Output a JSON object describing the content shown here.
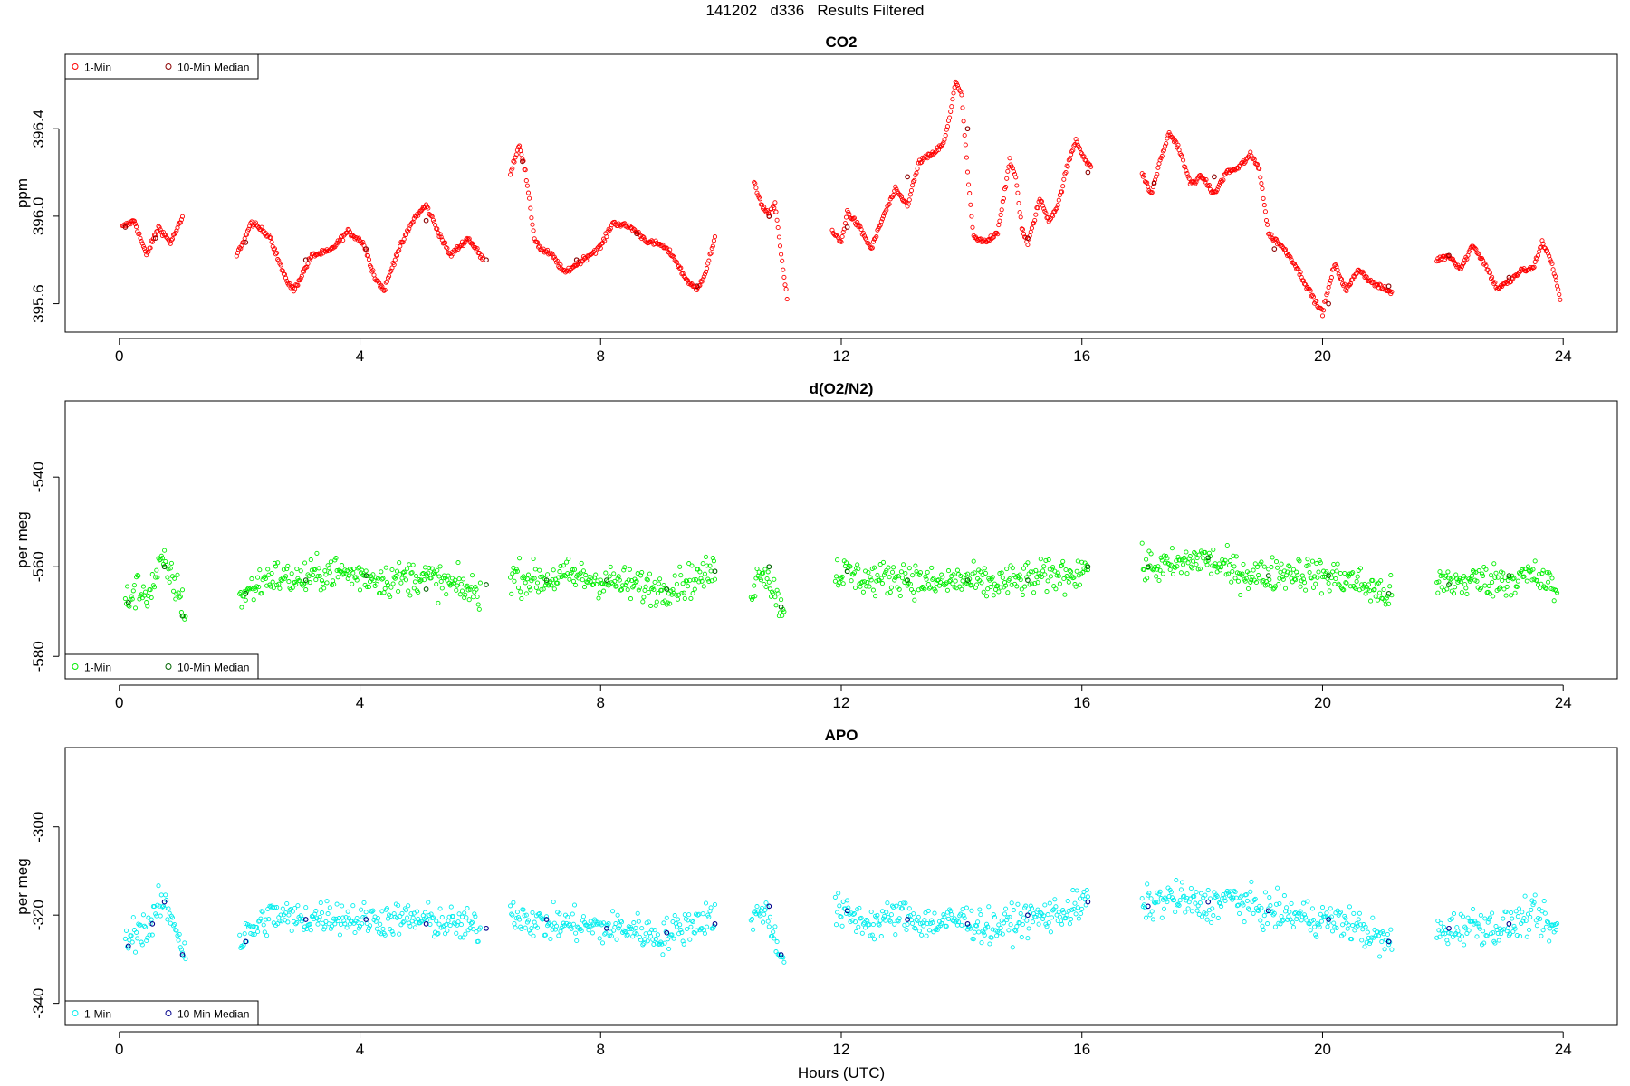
{
  "page_title": "141202   d336   Results Filtered",
  "shared_xlabel": "Hours (UTC)",
  "chart_data": [
    {
      "type": "scatter",
      "title": "CO2",
      "ylabel": "ppm",
      "xlim": [
        -0.9,
        24.9
      ],
      "ylim": [
        395.47,
        396.74
      ],
      "xticks": [
        0,
        4,
        8,
        12,
        16,
        20,
        24
      ],
      "yticks": [
        395.6,
        396.0,
        396.4
      ],
      "ytick_labels": [
        "395.6",
        "396.0",
        "396.4"
      ],
      "legend_position": "top-left",
      "series": [
        {
          "name": "1-Min",
          "color": "#ff0000",
          "segments": [
            {
              "x": [
                0.05,
                0.25,
                0.45,
                0.65,
                0.85,
                1.05
              ],
              "y": [
                395.95,
                395.98,
                395.82,
                395.95,
                395.88,
                395.99
              ]
            },
            {
              "x": [
                1.95,
                2.2,
                2.5,
                2.75,
                2.9,
                3.2,
                3.5,
                3.8,
                4.05,
                4.25,
                4.4,
                4.6,
                4.9,
                5.1,
                5.3,
                5.5,
                5.8,
                6.05
              ],
              "y": [
                395.82,
                395.97,
                395.91,
                395.72,
                395.66,
                395.82,
                395.84,
                395.93,
                395.88,
                395.72,
                395.66,
                395.82,
                395.99,
                396.05,
                395.93,
                395.82,
                395.9,
                395.8
              ]
            },
            {
              "x": [
                6.5,
                6.65,
                6.75,
                6.9,
                7.0,
                7.2,
                7.4,
                7.6,
                7.8,
                8.0,
                8.2,
                8.5,
                8.8,
                9.0,
                9.2,
                9.4,
                9.6,
                9.75,
                9.9
              ],
              "y": [
                396.2,
                396.33,
                396.2,
                395.9,
                395.85,
                395.82,
                395.74,
                395.78,
                395.82,
                395.86,
                395.97,
                395.95,
                395.88,
                395.87,
                395.82,
                395.72,
                395.66,
                395.75,
                395.9
              ]
            },
            {
              "x": [
                10.55,
                10.7,
                10.8,
                10.9,
                11.0,
                11.05,
                11.1
              ],
              "y": [
                396.15,
                396.04,
                396.0,
                396.06,
                395.83,
                395.72,
                395.62
              ]
            },
            {
              "x": [
                11.85,
                12.0,
                12.1,
                12.3,
                12.5,
                12.7,
                12.9,
                13.1,
                13.3,
                13.5,
                13.7,
                13.8,
                13.9,
                14.0,
                14.1,
                14.2,
                14.4,
                14.6,
                14.8,
                14.9,
                15.0,
                15.1,
                15.3,
                15.45,
                15.6,
                15.75,
                15.9,
                16.05,
                16.15
              ],
              "y": [
                395.93,
                395.88,
                396.02,
                395.95,
                395.85,
                396.0,
                396.12,
                396.05,
                396.25,
                396.28,
                396.33,
                396.45,
                396.62,
                396.55,
                396.2,
                395.9,
                395.88,
                395.93,
                396.25,
                396.18,
                395.95,
                395.87,
                396.08,
                395.98,
                396.05,
                396.22,
                396.35,
                396.26,
                396.22
              ]
            },
            {
              "x": [
                17.0,
                17.15,
                17.3,
                17.45,
                17.6,
                17.8,
                18.0,
                18.2,
                18.4,
                18.6,
                18.8,
                18.95,
                19.1,
                19.3,
                19.5,
                19.7,
                19.9,
                20.0,
                20.2,
                20.4,
                20.6,
                20.8,
                21.0,
                21.15
              ],
              "y": [
                396.2,
                396.1,
                396.25,
                396.38,
                396.32,
                396.15,
                396.18,
                396.1,
                396.2,
                396.22,
                396.28,
                396.22,
                395.92,
                395.87,
                395.8,
                395.7,
                395.6,
                395.56,
                395.78,
                395.66,
                395.76,
                395.7,
                395.67,
                395.65
              ]
            },
            {
              "x": [
                21.9,
                22.1,
                22.3,
                22.5,
                22.7,
                22.9,
                23.1,
                23.3,
                23.5,
                23.65,
                23.8,
                23.95
              ],
              "y": [
                395.8,
                395.82,
                395.76,
                395.87,
                395.78,
                395.67,
                395.7,
                395.75,
                395.76,
                395.88,
                395.8,
                395.62
              ]
            }
          ]
        },
        {
          "name": "10-Min Median",
          "color": "#8b0000",
          "x": [
            0.1,
            0.6,
            2.1,
            3.1,
            4.1,
            5.1,
            6.1,
            6.7,
            7.6,
            8.6,
            9.6,
            10.8,
            12.1,
            13.1,
            14.1,
            15.1,
            16.1,
            17.2,
            18.2,
            19.2,
            20.1,
            21.1,
            22.1,
            23.1
          ],
          "y": [
            395.95,
            395.9,
            395.88,
            395.8,
            395.85,
            395.98,
            395.8,
            396.25,
            395.8,
            395.92,
            395.68,
            396.0,
            395.95,
            396.18,
            396.4,
            395.9,
            396.2,
            396.15,
            396.18,
            395.85,
            395.6,
            395.68,
            395.82,
            395.72
          ]
        }
      ]
    },
    {
      "type": "scatter",
      "title": "d(O2/N2)",
      "ylabel": "per meg",
      "xlim": [
        -0.9,
        24.9
      ],
      "ylim": [
        -585,
        -523
      ],
      "xticks": [
        0,
        4,
        8,
        12,
        16,
        20,
        24
      ],
      "yticks": [
        -580,
        -560,
        -540
      ],
      "ytick_labels": [
        "-580",
        "-560",
        "-540"
      ],
      "legend_position": "bottom-left",
      "series": [
        {
          "name": "1-Min",
          "color": "#00ee00",
          "segments": [
            {
              "x": [
                0.1,
                0.3,
                0.5,
                0.7,
                0.9,
                1.1
              ],
              "y": [
                -568,
                -565,
                -566,
                -559,
                -563,
                -570
              ]
            },
            {
              "x": [
                2.0,
                2.5,
                3.0,
                3.5,
                4.0,
                4.5,
                5.0,
                5.5,
                6.0
              ],
              "y": [
                -567,
                -562,
                -563,
                -561,
                -562,
                -563,
                -562,
                -564,
                -566
              ]
            },
            {
              "x": [
                6.5,
                7.0,
                7.5,
                8.0,
                8.5,
                9.0,
                9.5,
                9.9
              ],
              "y": [
                -562,
                -563,
                -562,
                -563,
                -564,
                -565,
                -563,
                -561
              ]
            },
            {
              "x": [
                10.5,
                10.7,
                10.9,
                11.05
              ],
              "y": [
                -565,
                -560,
                -566,
                -570
              ]
            },
            {
              "x": [
                11.9,
                12.5,
                13.0,
                13.5,
                14.0,
                14.5,
                15.0,
                15.5,
                16.0,
                16.1
              ],
              "y": [
                -561,
                -563,
                -562,
                -564,
                -563,
                -564,
                -563,
                -562,
                -561,
                -559
              ]
            },
            {
              "x": [
                17.0,
                17.5,
                18.0,
                18.5,
                19.0,
                19.5,
                20.0,
                20.5,
                21.0,
                21.15
              ],
              "y": [
                -560,
                -560,
                -558,
                -561,
                -562,
                -561,
                -562,
                -563,
                -566,
                -566
              ]
            },
            {
              "x": [
                21.9,
                22.5,
                23.0,
                23.5,
                23.9
              ],
              "y": [
                -564,
                -563,
                -563,
                -562,
                -565
              ]
            }
          ]
        },
        {
          "name": "10-Min Median",
          "color": "#006400",
          "x": [
            0.15,
            0.75,
            1.05,
            2.1,
            3.1,
            4.1,
            5.1,
            6.1,
            7.1,
            8.1,
            9.1,
            9.9,
            10.8,
            11.0,
            12.1,
            13.1,
            14.1,
            15.1,
            16.1,
            17.1,
            18.1,
            19.1,
            20.1,
            21.1,
            22.1,
            23.1
          ],
          "y": [
            -568,
            -560,
            -571,
            -566,
            -563,
            -562,
            -565,
            -564,
            -563,
            -563,
            -565,
            -561,
            -560,
            -569,
            -561,
            -563,
            -563,
            -563,
            -560,
            -560,
            -558,
            -562,
            -562,
            -566,
            -564,
            -562
          ]
        }
      ]
    },
    {
      "type": "scatter",
      "title": "APO",
      "ylabel": "per meg",
      "xlim": [
        -0.9,
        24.9
      ],
      "ylim": [
        -345,
        -282
      ],
      "xticks": [
        0,
        4,
        8,
        12,
        16,
        20,
        24
      ],
      "yticks": [
        -340,
        -320,
        -300
      ],
      "ytick_labels": [
        "-340",
        "-320",
        "-300"
      ],
      "legend_position": "bottom-left",
      "series": [
        {
          "name": "1-Min",
          "color": "#00eeee",
          "segments": [
            {
              "x": [
                0.1,
                0.3,
                0.5,
                0.7,
                0.9,
                1.1
              ],
              "y": [
                -327,
                -323,
                -323,
                -317,
                -321,
                -329
              ]
            },
            {
              "x": [
                2.0,
                2.5,
                3.0,
                3.5,
                4.0,
                4.5,
                5.0,
                5.5,
                6.0
              ],
              "y": [
                -326,
                -320,
                -321,
                -320,
                -321,
                -321,
                -321,
                -322,
                -323
              ]
            },
            {
              "x": [
                6.5,
                7.0,
                7.5,
                8.0,
                8.5,
                9.0,
                9.5,
                9.9
              ],
              "y": [
                -319,
                -322,
                -322,
                -323,
                -323,
                -325,
                -322,
                -320
              ]
            },
            {
              "x": [
                10.5,
                10.7,
                10.9,
                11.05
              ],
              "y": [
                -322,
                -318,
                -325,
                -330
              ]
            },
            {
              "x": [
                11.9,
                12.5,
                13.0,
                13.5,
                14.0,
                14.5,
                15.0,
                15.5,
                16.0,
                16.1
              ],
              "y": [
                -319,
                -322,
                -320,
                -322,
                -321,
                -323,
                -321,
                -320,
                -318,
                -316
              ]
            },
            {
              "x": [
                17.0,
                17.5,
                18.0,
                18.5,
                19.0,
                19.5,
                20.0,
                20.5,
                21.0,
                21.15
              ],
              "y": [
                -318,
                -316,
                -318,
                -316,
                -319,
                -320,
                -321,
                -322,
                -326,
                -326
              ]
            },
            {
              "x": [
                21.9,
                22.5,
                23.0,
                23.5,
                23.9
              ],
              "y": [
                -324,
                -322,
                -323,
                -320,
                -324
              ]
            }
          ]
        },
        {
          "name": "10-Min Median",
          "color": "#00008b",
          "x": [
            0.15,
            0.55,
            0.75,
            1.05,
            2.1,
            3.1,
            4.1,
            5.1,
            6.1,
            7.1,
            8.1,
            9.1,
            9.9,
            10.8,
            11.0,
            12.1,
            13.1,
            14.1,
            15.1,
            16.1,
            17.1,
            18.1,
            19.1,
            20.1,
            21.1,
            22.1,
            23.1
          ],
          "y": [
            -327,
            -322,
            -317,
            -329,
            -326,
            -321,
            -321,
            -322,
            -323,
            -321,
            -323,
            -324,
            -322,
            -318,
            -329,
            -319,
            -321,
            -322,
            -320,
            -317,
            -318,
            -317,
            -319,
            -321,
            -326,
            -323,
            -322
          ]
        }
      ]
    }
  ]
}
